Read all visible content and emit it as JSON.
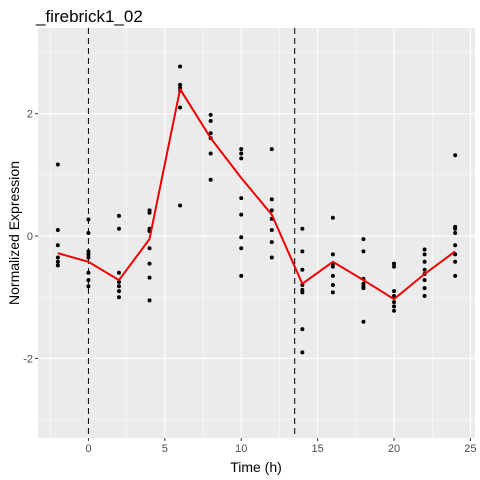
{
  "chart_data": {
    "type": "scatter",
    "title": "_firebrick1_02",
    "xlabel": "Time (h)",
    "ylabel": "Normalized Expression",
    "xlim": [
      -3.3,
      25.3
    ],
    "ylim": [
      -3.3,
      3.4
    ],
    "x_ticks": [
      0,
      5,
      10,
      15,
      20,
      25
    ],
    "y_ticks": [
      -2,
      0,
      2
    ],
    "grid": true,
    "panel_background": "#ebebeb",
    "grid_color": "#ffffff",
    "point_color": "#000000",
    "line_color": "#ee0000",
    "vlines": [
      0,
      13.5
    ],
    "points": [
      [
        -2,
        1.17
      ],
      [
        -2,
        0.1
      ],
      [
        -2,
        -0.15
      ],
      [
        -2,
        -0.35
      ],
      [
        -2,
        -0.42
      ],
      [
        -2,
        -0.48
      ],
      [
        0,
        0.27
      ],
      [
        0,
        0.05
      ],
      [
        0,
        -0.25
      ],
      [
        0,
        -0.3
      ],
      [
        0,
        -0.35
      ],
      [
        0,
        -0.6
      ],
      [
        0,
        -0.72
      ],
      [
        0,
        -0.82
      ],
      [
        2,
        0.33
      ],
      [
        2,
        0.12
      ],
      [
        2,
        -0.6
      ],
      [
        2,
        -0.75
      ],
      [
        2,
        -0.82
      ],
      [
        2,
        -0.9
      ],
      [
        2,
        -1.0
      ],
      [
        4,
        0.42
      ],
      [
        4,
        0.38
      ],
      [
        4,
        0.12
      ],
      [
        4,
        0.08
      ],
      [
        4,
        -0.2
      ],
      [
        4,
        -0.45
      ],
      [
        4,
        -0.68
      ],
      [
        4,
        -1.05
      ],
      [
        6,
        2.77
      ],
      [
        6,
        2.47
      ],
      [
        6,
        2.42
      ],
      [
        6,
        2.37
      ],
      [
        6,
        2.1
      ],
      [
        6,
        0.5
      ],
      [
        8,
        1.98
      ],
      [
        8,
        1.88
      ],
      [
        8,
        1.68
      ],
      [
        8,
        1.6
      ],
      [
        8,
        1.35
      ],
      [
        8,
        0.92
      ],
      [
        10,
        1.42
      ],
      [
        10,
        1.35
      ],
      [
        10,
        1.27
      ],
      [
        10,
        0.62
      ],
      [
        10,
        0.35
      ],
      [
        10,
        -0.02
      ],
      [
        10,
        -0.2
      ],
      [
        10,
        -0.65
      ],
      [
        12,
        1.42
      ],
      [
        12,
        0.6
      ],
      [
        12,
        0.42
      ],
      [
        12,
        0.28
      ],
      [
        12,
        0.1
      ],
      [
        12,
        -0.1
      ],
      [
        12,
        -0.35
      ],
      [
        14,
        0.12
      ],
      [
        14,
        -0.25
      ],
      [
        14,
        -0.55
      ],
      [
        14,
        -0.8
      ],
      [
        14,
        -0.88
      ],
      [
        14,
        -0.92
      ],
      [
        14,
        -1.52
      ],
      [
        14,
        -1.9
      ],
      [
        16,
        0.3
      ],
      [
        16,
        -0.3
      ],
      [
        16,
        -0.45
      ],
      [
        16,
        -0.5
      ],
      [
        16,
        -0.65
      ],
      [
        16,
        -0.8
      ],
      [
        16,
        -0.92
      ],
      [
        18,
        -0.05
      ],
      [
        18,
        -0.25
      ],
      [
        18,
        -0.7
      ],
      [
        18,
        -0.78
      ],
      [
        18,
        -0.82
      ],
      [
        18,
        -0.85
      ],
      [
        18,
        -1.4
      ],
      [
        20,
        -0.45
      ],
      [
        20,
        -0.5
      ],
      [
        20,
        -0.9
      ],
      [
        20,
        -0.98
      ],
      [
        20,
        -1.08
      ],
      [
        20,
        -1.15
      ],
      [
        20,
        -1.22
      ],
      [
        22,
        -0.22
      ],
      [
        22,
        -0.3
      ],
      [
        22,
        -0.42
      ],
      [
        22,
        -0.55
      ],
      [
        22,
        -0.62
      ],
      [
        22,
        -0.72
      ],
      [
        22,
        -0.85
      ],
      [
        22,
        -0.98
      ],
      [
        24,
        1.32
      ],
      [
        24,
        0.15
      ],
      [
        24,
        0.12
      ],
      [
        24,
        0.05
      ],
      [
        24,
        -0.15
      ],
      [
        24,
        -0.3
      ],
      [
        24,
        -0.42
      ],
      [
        24,
        -0.65
      ]
    ],
    "mean_line": {
      "x": [
        -2,
        0,
        2,
        4,
        6,
        8,
        10,
        12,
        14,
        16,
        18,
        20,
        22,
        24
      ],
      "y": [
        -0.28,
        -0.42,
        -0.72,
        -0.05,
        2.4,
        1.6,
        0.95,
        0.35,
        -0.78,
        -0.42,
        -0.72,
        -1.03,
        -0.62,
        -0.25
      ]
    }
  }
}
